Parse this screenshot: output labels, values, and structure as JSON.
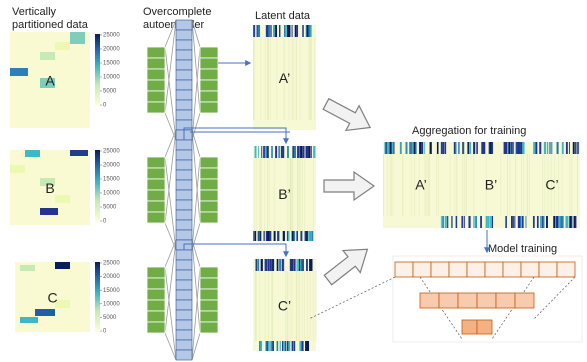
{
  "partitioned": {
    "title_lines": [
      "Vertically",
      "partitioned data"
    ]
  },
  "autoencoder": {
    "title_lines": [
      "Overcomplete",
      "autoencoder"
    ]
  },
  "latent": {
    "title": "Latent data"
  },
  "heatmaps": [
    {
      "label": "A",
      "colorbar_ticks": [
        25000,
        20000,
        15000,
        10000,
        5000,
        0
      ]
    },
    {
      "label": "B",
      "colorbar_ticks": [
        25000,
        20000,
        15000,
        10000,
        5000,
        0
      ]
    },
    {
      "label": "C",
      "colorbar_ticks": [
        25000,
        20000,
        15000,
        10000,
        5000,
        0
      ]
    }
  ],
  "latents": [
    {
      "label": "A’"
    },
    {
      "label": "B’"
    },
    {
      "label": "C’"
    }
  ],
  "aggregation": {
    "title": "Aggregation for training",
    "labels": [
      "A’",
      "B’",
      "C’"
    ]
  },
  "model": {
    "title": "Model training"
  }
}
